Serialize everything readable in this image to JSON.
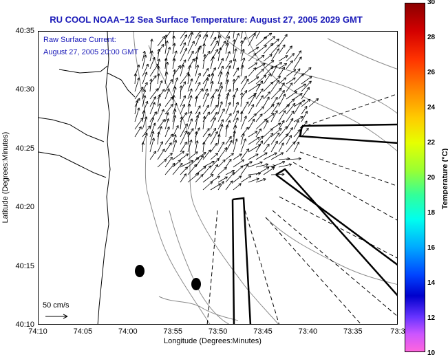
{
  "title": "RU COOL  NOAA−12  Sea Surface Temperature:  August 27, 2005 2029 GMT",
  "annotation": {
    "line1": "Raw Surface Current:",
    "line2": "August 27, 2005 20:00 GMT"
  },
  "axes": {
    "xlabel": "Longitude (Degrees:Minutes)",
    "ylabel": "Latitude (Degrees:Minutes)",
    "xticks": [
      "74:10",
      "74:05",
      "74:00",
      "73:55",
      "73:50",
      "73:45",
      "73:40",
      "73:35",
      "73:3"
    ],
    "yticks": [
      "40:35",
      "40:30",
      "40:25",
      "40:20",
      "40:15",
      "40:10"
    ]
  },
  "scale_label": "50 cm/s",
  "colorbar": {
    "label": "Temperature (°C)",
    "ticks": [
      "30",
      "28",
      "26",
      "24",
      "22",
      "20",
      "18",
      "16",
      "14",
      "12",
      "10"
    ]
  },
  "colors": {
    "title": "#1a1ab8",
    "coast": "#000000",
    "contour": "#8a8a8a"
  }
}
